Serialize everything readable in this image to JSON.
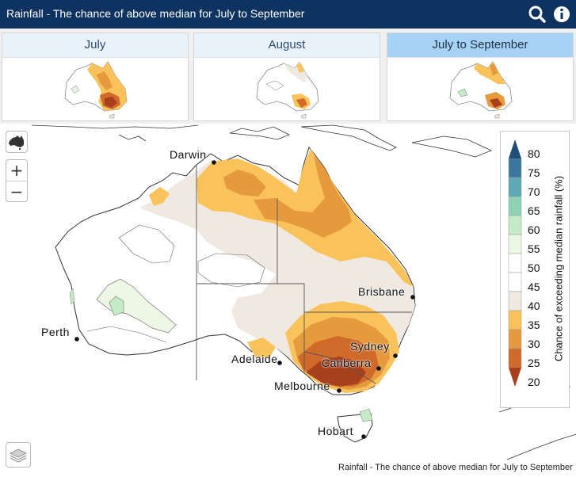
{
  "header": {
    "title": "Rainfall - The chance of above median for July to September"
  },
  "tabs": [
    {
      "label": "July"
    },
    {
      "label": "August"
    },
    {
      "label": "July to September",
      "active": true
    }
  ],
  "controls": {
    "zoom_in": "+",
    "zoom_out": "−"
  },
  "legend": {
    "title": "Chance of exceeding median rainfall (%)",
    "ticks": [
      "80",
      "75",
      "70",
      "65",
      "60",
      "55",
      "50",
      "45",
      "40",
      "35",
      "30",
      "25",
      "20"
    ],
    "colors": [
      "#1f4e79",
      "#3b789e",
      "#5fa8b8",
      "#8fd1b4",
      "#c5ebc6",
      "#ecf7e6",
      "#ffffff",
      "#ffffff",
      "#efe9e2",
      "#f9c25a",
      "#e59a3d",
      "#cf6a2a",
      "#a8401d"
    ]
  },
  "cities": [
    {
      "name": "Darwin"
    },
    {
      "name": "Brisbane"
    },
    {
      "name": "Perth"
    },
    {
      "name": "Sydney"
    },
    {
      "name": "Adelaide"
    },
    {
      "name": "Canberra"
    },
    {
      "name": "Melbourne"
    },
    {
      "name": "Hobart"
    }
  ],
  "caption": "Rainfall - The chance of above median for July to September"
}
